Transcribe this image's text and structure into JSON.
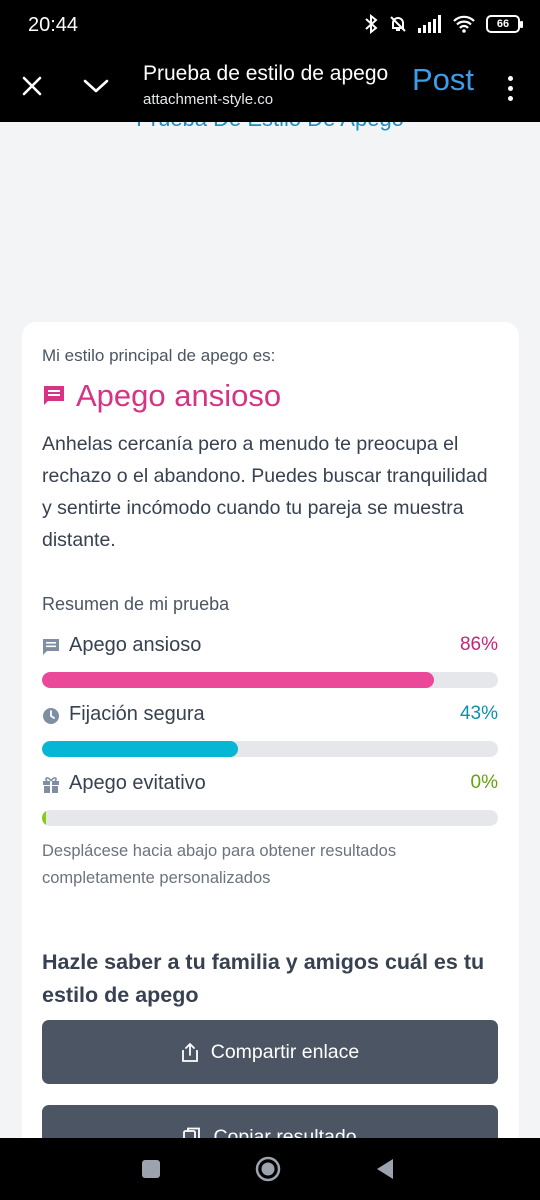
{
  "status_bar": {
    "time": "20:44",
    "battery": "66"
  },
  "app_bar": {
    "title": "Prueba de estilo de apego",
    "url": "attachment-style.co",
    "post_label": "Post"
  },
  "page": {
    "heading": "Prueba De Estilo De Apego"
  },
  "result_card": {
    "label": "Mi estilo principal de apego es:",
    "style_name": "Apego ansioso",
    "style_color": "#d63384",
    "description": "Anhelas cercanía pero a menudo te preocupa el rechazo o el abandono. Puedes buscar tranquilidad y sentirte incómodo cuando tu pareja se muestra distante.",
    "summary_title": "Resumen de mi prueba",
    "results": [
      {
        "name": "Apego ansioso",
        "percent_label": "86%",
        "value": 86,
        "color": "#ec4899",
        "text_color": "#c0267a",
        "icon": "chat-icon"
      },
      {
        "name": "Fijación segura",
        "percent_label": "43%",
        "value": 43,
        "color": "#06b6d4",
        "text_color": "#0e8fb0",
        "icon": "clock-icon"
      },
      {
        "name": "Apego evitativo",
        "percent_label": "0%",
        "value": 0,
        "color": "#84cc16",
        "text_color": "#65a30d",
        "icon": "gift-icon"
      }
    ],
    "hint": "Desplácese hacia abajo para obtener resultados completamente personalizados",
    "share_title": "Hazle saber a tu familia y amigos cuál es tu estilo de apego",
    "share_button": "Compartir enlace",
    "copy_button": "Copiar resultado"
  }
}
